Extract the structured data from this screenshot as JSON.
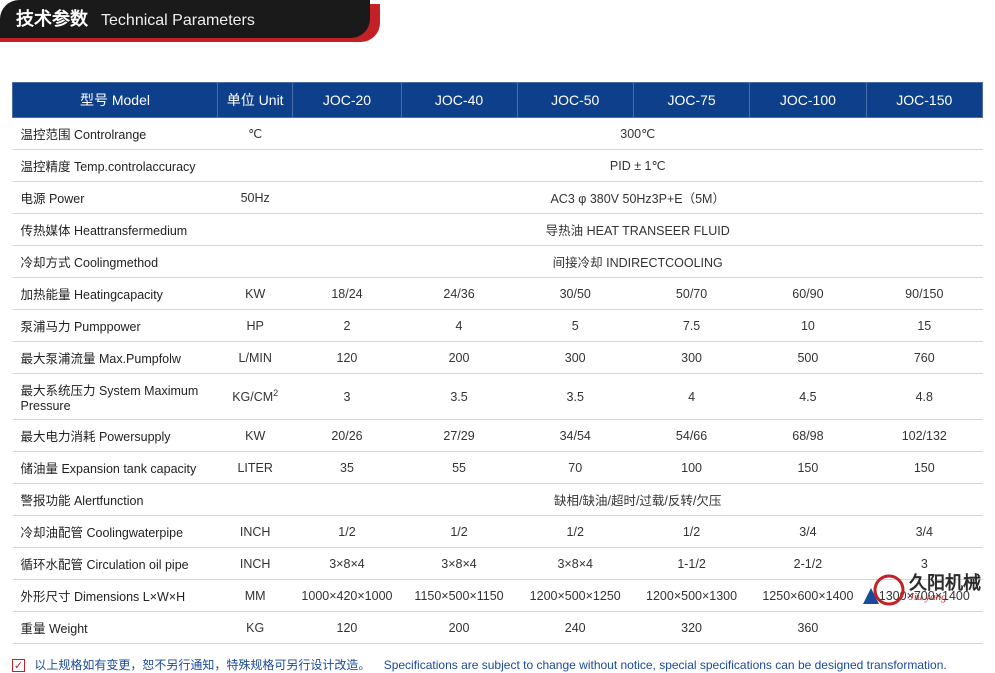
{
  "banner": {
    "cn": "技术参数",
    "en": "Technical Parameters",
    "dark_bg": "#1a1a1a",
    "red_bg": "#c42127"
  },
  "table": {
    "header_bg": "#0e3f8a",
    "header_text": "#ffffff",
    "border_color": "#d6d6d6",
    "columns": [
      "型号 Model",
      "单位 Unit",
      "JOC-20",
      "JOC-40",
      "JOC-50",
      "JOC-75",
      "JOC-100",
      "JOC-150"
    ],
    "col_widths": [
      "220px",
      "80px",
      "110px",
      "120px",
      "120px",
      "120px",
      "120px",
      "120px"
    ],
    "rows": [
      {
        "label": "温控范围 Controlrange",
        "unit": "℃",
        "span": true,
        "value": "300℃"
      },
      {
        "label": "温控精度 Temp.controlaccuracy",
        "unit": "",
        "span": true,
        "value": "PID ± 1℃"
      },
      {
        "label": "电源 Power",
        "unit": "50Hz",
        "span": true,
        "value": "AC3 φ 380V 50Hz3P+E（5M）"
      },
      {
        "label": "传热媒体 Heattransfermedium",
        "unit": "",
        "span": true,
        "value": "导热油 HEAT TRANSEER FLUID"
      },
      {
        "label": "冷却方式 Coolingmethod",
        "unit": "",
        "span": true,
        "value": "间接冷却 INDIRECTCOOLING"
      },
      {
        "label": "加热能量 Heatingcapacity",
        "unit": "KW",
        "cells": [
          "18/24",
          "24/36",
          "30/50",
          "50/70",
          "60/90",
          "90/150"
        ]
      },
      {
        "label": "泵浦马力 Pumppower",
        "unit": "HP",
        "cells": [
          "2",
          "4",
          "5",
          "7.5",
          "10",
          "15"
        ]
      },
      {
        "label": "最大泵浦流量 Max.Pumpfolw",
        "unit": "L/MIN",
        "cells": [
          "120",
          "200",
          "300",
          "300",
          "500",
          "760"
        ]
      },
      {
        "label": "最大系统压力 System Maximum Pressure",
        "unit": "KG/CM²",
        "cells": [
          "3",
          "3.5",
          "3.5",
          "4",
          "4.5",
          "4.8"
        ]
      },
      {
        "label": "最大电力消耗 Powersupply",
        "unit": "KW",
        "cells": [
          "20/26",
          "27/29",
          "34/54",
          "54/66",
          "68/98",
          "102/132"
        ]
      },
      {
        "label": "储油量 Expansion tank capacity",
        "unit": "LITER",
        "cells": [
          "35",
          "55",
          "70",
          "100",
          "150",
          "150"
        ]
      },
      {
        "label": "警报功能 Alertfunction",
        "unit": "",
        "span": true,
        "value": "缺相/缺油/超时/过载/反转/欠压"
      },
      {
        "label": "冷却油配管 Coolingwaterpipe",
        "unit": "INCH",
        "cells": [
          "1/2",
          "1/2",
          "1/2",
          "1/2",
          "3/4",
          "3/4"
        ]
      },
      {
        "label": "循环水配管 Circulation oil pipe",
        "unit": "INCH",
        "cells": [
          "3×8×4",
          "3×8×4",
          "3×8×4",
          "1-1/2",
          "2-1/2",
          "3"
        ]
      },
      {
        "label": "外形尺寸 Dimensions L×W×H",
        "unit": "MM",
        "cells": [
          "1000×420×1000",
          "1150×500×1150",
          "1200×500×1250",
          "1200×500×1300",
          "1250×600×1400",
          "1300×700×1400"
        ]
      },
      {
        "label": "重量 Weight",
        "unit": "KG",
        "cells": [
          "120",
          "200",
          "240",
          "320",
          "360",
          ""
        ]
      }
    ]
  },
  "footnote": {
    "cn": "以上规格如有变更，恕不另行通知，特殊规格可另行设计改造。",
    "en": "Specifications are subject to change without notice, special specifications can be designed transformation."
  },
  "logo": {
    "cn": "久阳机械",
    "py": "Jiu yang",
    "circle_color": "#c42127",
    "triangle_color": "#1a4a9a"
  }
}
